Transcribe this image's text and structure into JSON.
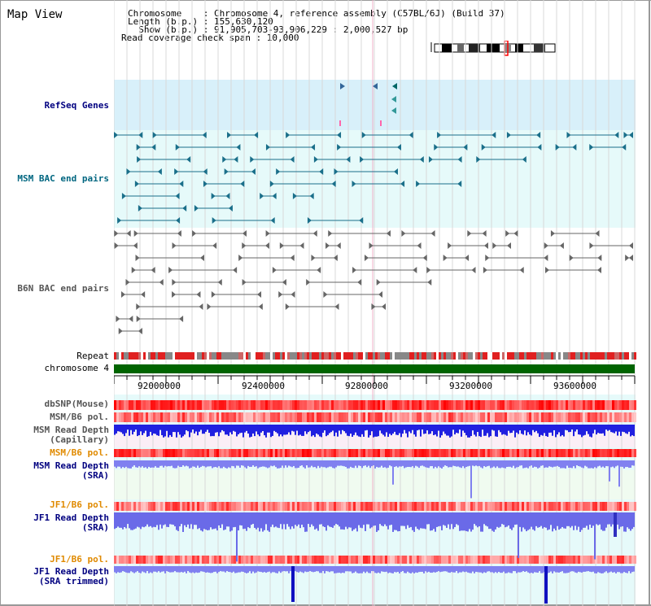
{
  "title": "Map View",
  "header": {
    "chromosome_line": "Chromosome    : Chromosome 4, reference assembly (C57BL/6J) (Build 37)",
    "length_line": "Length (b.p.) : 155,630,120",
    "show_line": "  Show (b.p.) : 91,905,703-93,906,229 : 2,000,527 bp",
    "coverage_line": "Read coverage check span : 10,000"
  },
  "tracks": {
    "refseq": "RefSeq Genes",
    "msm_bac": "MSM BAC end pairs",
    "b6n_bac": "B6N BAC end pairs",
    "repeat": "Repeat",
    "chromosome": "chromosome 4",
    "dbsnp": "dbSNP(Mouse)",
    "msm_pol": "MSM/B6 pol.",
    "msm_depth_cap_1": "MSM Read Depth",
    "msm_depth_cap_2": "(Capillary)",
    "msm_pol2": "MSM/B6 pol.",
    "msm_depth_sra_1": "MSM Read Depth",
    "msm_depth_sra_2": "(SRA)",
    "jf1_pol": "JF1/B6 pol.",
    "jf1_depth_1": "JF1 Read Depth",
    "jf1_depth_2": "(SRA)",
    "jf1_pol2": "JF1/B6 pol.",
    "jf1_trim_1": "JF1 Read Depth",
    "jf1_trim_2": "(SRA trimmed)"
  },
  "axis": {
    "ticks": [
      "92000000",
      "92400000",
      "92800000",
      "93200000",
      "93600000"
    ]
  },
  "colors": {
    "refseq_bg": "#d8f0fa",
    "bac_bg": "#e6fafa",
    "chromosome": "#006400",
    "depth_blue": "#2020e0",
    "depth_light": "#8080f0",
    "snp_red": "#ff4040"
  }
}
